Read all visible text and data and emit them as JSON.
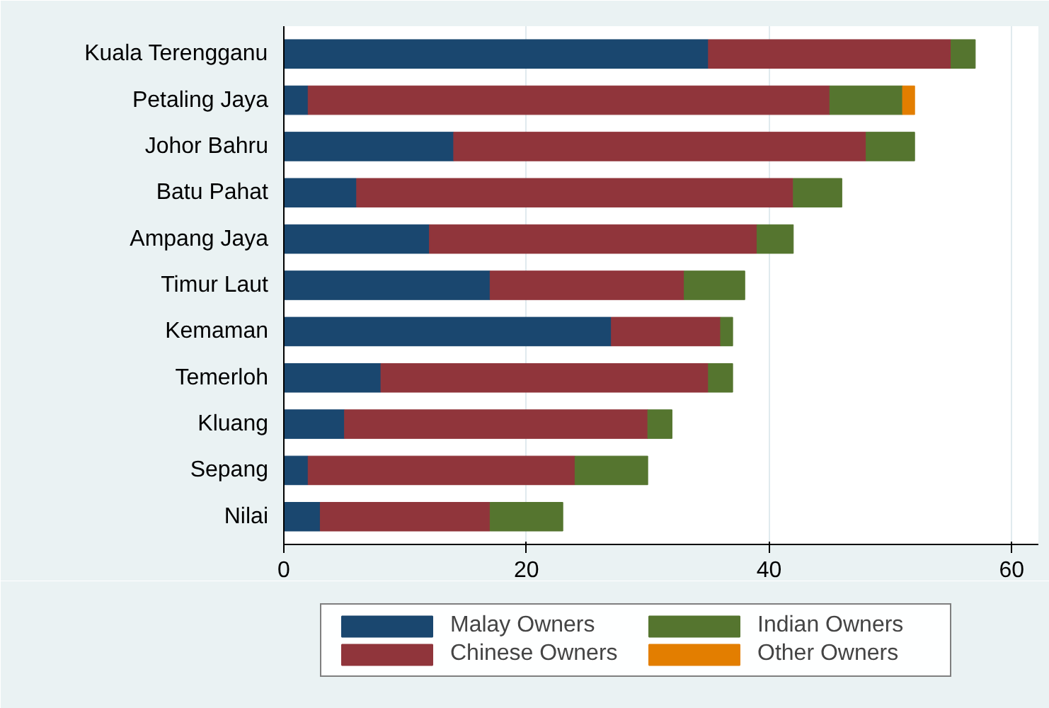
{
  "chart_data": {
    "type": "bar",
    "orientation": "horizontal",
    "stacked": true,
    "categories": [
      "Kuala Terengganu",
      "Petaling Jaya",
      "Johor Bahru",
      "Batu Pahat",
      "Ampang Jaya",
      "Timur Laut",
      "Kemaman",
      "Temerloh",
      "Kluang",
      "Sepang",
      "Nilai"
    ],
    "series": [
      {
        "name": "Malay Owners",
        "color": "#1a476f",
        "values": [
          35,
          2,
          14,
          6,
          12,
          17,
          27,
          8,
          5,
          2,
          3
        ]
      },
      {
        "name": "Chinese Owners",
        "color": "#90353b",
        "values": [
          20,
          43,
          34,
          36,
          27,
          16,
          9,
          27,
          25,
          22,
          14
        ]
      },
      {
        "name": "Indian Owners",
        "color": "#55752f",
        "values": [
          2,
          6,
          4,
          4,
          3,
          5,
          1,
          2,
          2,
          6,
          6
        ]
      },
      {
        "name": "Other Owners",
        "color": "#e37e00",
        "values": [
          0,
          1,
          0,
          0,
          0,
          0,
          0,
          0,
          0,
          0,
          0
        ]
      }
    ],
    "xlim": [
      0,
      62.2
    ],
    "xticks": [
      0,
      20,
      40,
      60
    ],
    "grid": "x",
    "legend": "bottom"
  }
}
